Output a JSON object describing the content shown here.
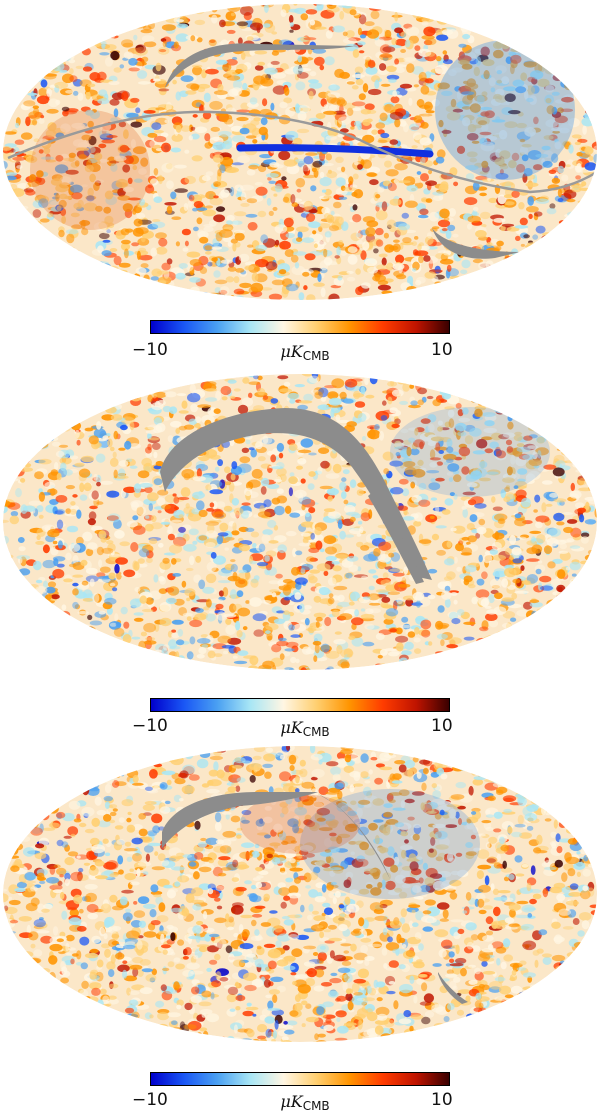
{
  "colors": {
    "mask": "#8c8c8c",
    "colormap": [
      "#0000cc",
      "#1a57f5",
      "#4aa0f2",
      "#a8e6f5",
      "#fff6e3",
      "#ffcf70",
      "#ff9400",
      "#ff3c00",
      "#c01400",
      "#3a0000"
    ]
  },
  "panels": [
    {
      "colorbar": {
        "min_label": "−10",
        "max_label": "10",
        "unit_prefix": "μK",
        "unit_sub": "CMB"
      }
    },
    {
      "colorbar": {
        "min_label": "−10",
        "max_label": "10",
        "unit_prefix": "μK",
        "unit_sub": "CMB"
      }
    },
    {
      "colorbar": {
        "min_label": "−10",
        "max_label": "10",
        "unit_prefix": "μK",
        "unit_sub": "CMB"
      }
    }
  ]
}
